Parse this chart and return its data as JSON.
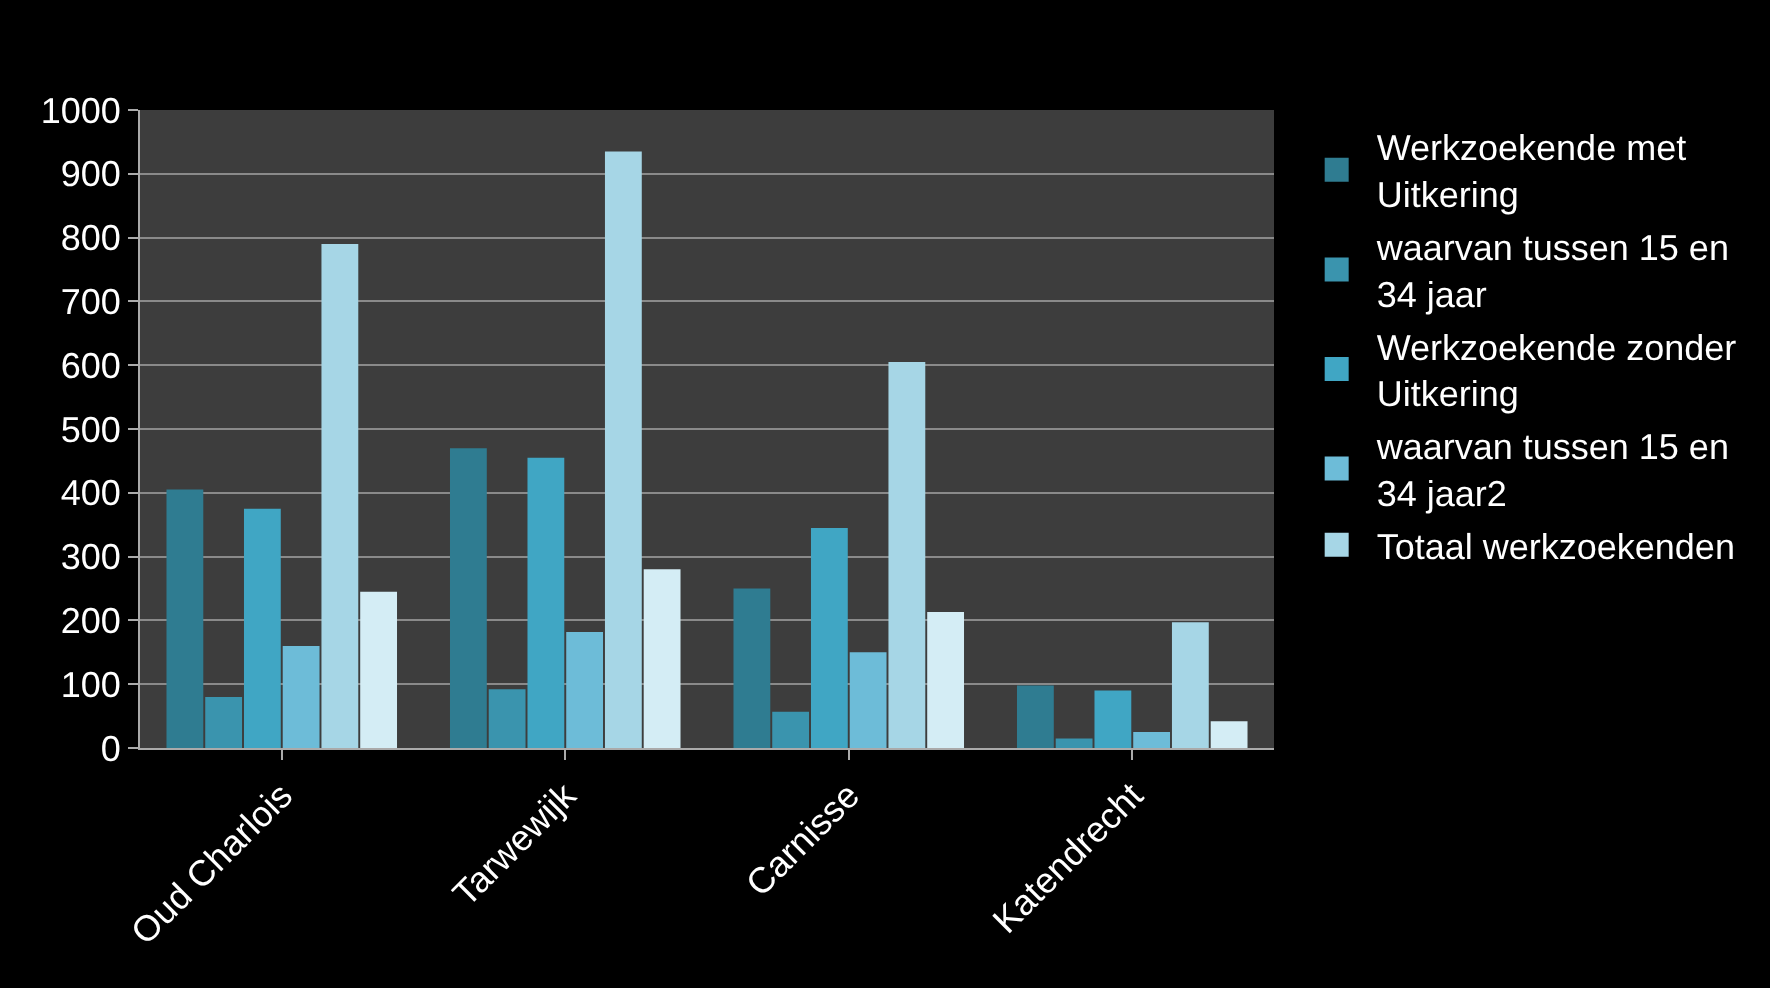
{
  "chart_data": {
    "type": "bar",
    "categories": [
      "Oud Charlois",
      "Tarwewijk",
      "Carnisse",
      "Katendrecht"
    ],
    "series": [
      {
        "name": "Werkzoekende met Uitkering",
        "color": "#2f7c91",
        "values": [
          405,
          470,
          250,
          98
        ]
      },
      {
        "name": "waarvan tussen 15 en 34 jaar",
        "color": "#3a94ae",
        "values": [
          80,
          92,
          57,
          15
        ]
      },
      {
        "name": "Werkzoekende zonder Uitkering",
        "color": "#40a6c4",
        "values": [
          375,
          455,
          345,
          90
        ]
      },
      {
        "name": "waarvan tussen 15 en 34 jaar2",
        "color": "#6dbcd8",
        "values": [
          160,
          182,
          150,
          25
        ]
      },
      {
        "name": "Totaal werkzoekenden",
        "color": "#a6d6e6",
        "values": [
          790,
          935,
          605,
          197
        ]
      },
      {
        "color": "#d4edf5",
        "values": [
          245,
          280,
          213,
          42
        ]
      }
    ],
    "ylim": [
      0,
      1000
    ],
    "yticks": [
      0,
      100,
      200,
      300,
      400,
      500,
      600,
      700,
      800,
      900,
      1000
    ],
    "grid": "y",
    "legend": "right"
  }
}
